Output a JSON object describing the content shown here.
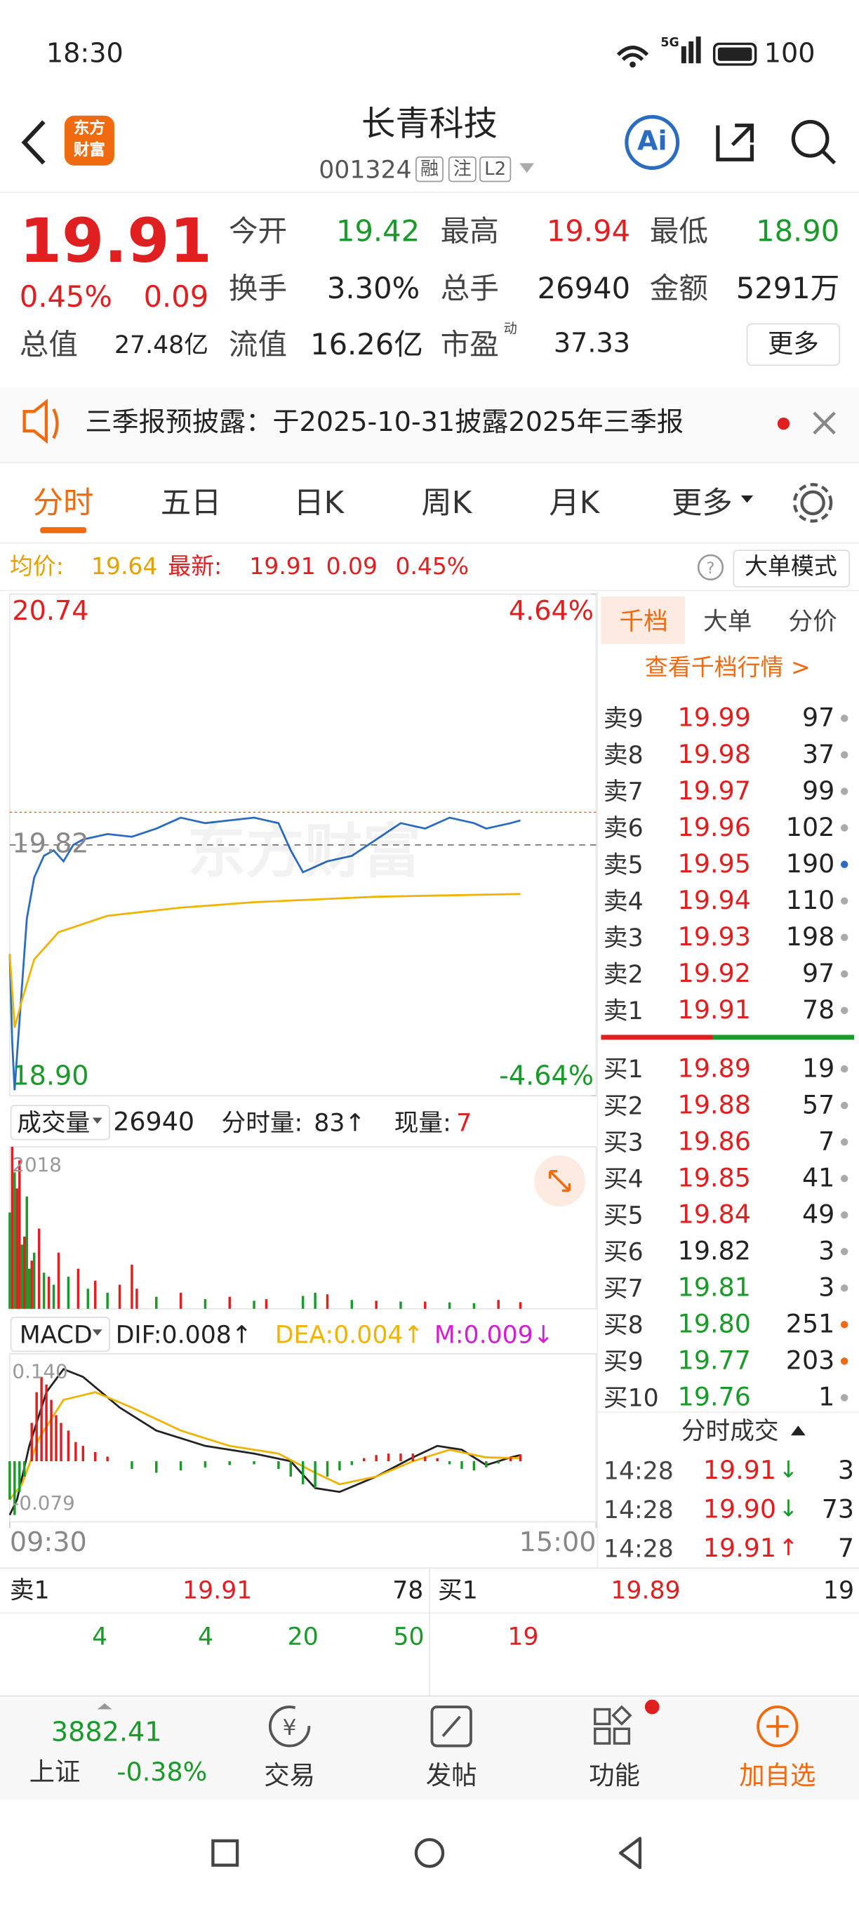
{
  "status_bar": {
    "time": "18:30",
    "network": "5G",
    "battery": "100"
  },
  "header": {
    "title": "长青科技",
    "code": "001324",
    "tags": [
      "融",
      "注",
      "L2"
    ],
    "logo": [
      "东方",
      "财富"
    ],
    "ai": "Ai"
  },
  "quote": {
    "price": "19.91",
    "change_pct": "0.45%",
    "change": "0.09",
    "stats": [
      {
        "label": "今开",
        "value": "19.42"
      },
      {
        "label": "最高",
        "value": "19.94"
      },
      {
        "label": "最低",
        "value": "18.90"
      },
      {
        "label": "换手",
        "value": "3.30%"
      },
      {
        "label": "总手",
        "value": "26940"
      },
      {
        "label": "金额",
        "value": "5291万"
      },
      {
        "label": "总值",
        "value": "27.48亿"
      },
      {
        "label": "流值",
        "value": "16.26亿"
      },
      {
        "label": "市盈",
        "sup": "动",
        "value": "37.33"
      }
    ],
    "more": "更多"
  },
  "notice": "三季报预披露：于2025-10-31披露2025年三季报",
  "tabs": [
    "分时",
    "五日",
    "日K",
    "周K",
    "月K",
    "更多"
  ],
  "info_bar": {
    "avg_label": "均价:",
    "avg": "19.64",
    "latest_label": "最新:",
    "latest": "19.91",
    "change": "0.09",
    "change_pct": "0.45%",
    "mode": "大单模式"
  },
  "chart_data": [
    {
      "type": "line",
      "watermark": "东方财富",
      "xlim": [
        0,
        240
      ],
      "xticks": [
        {
          "value": 0,
          "label": "09:30"
        },
        {
          "value": 240,
          "label": "15:00"
        }
      ],
      "ylim": [
        18.9,
        20.74
      ],
      "yticks": [
        20.74,
        19.82,
        {
          "value": 18.9,
          "label": "18.90"
        }
      ],
      "y2lim": [
        -4.64,
        4.64
      ],
      "y2ticks": [
        {
          "value": 4.64,
          "label": "4.64%"
        },
        {
          "value": -4.64,
          "label": "-4.64%"
        }
      ],
      "series": [
        {
          "color": "#2a6cc0",
          "x": [
            0,
            1,
            2,
            3,
            5,
            7,
            10,
            14,
            18,
            22,
            26,
            30,
            40,
            50,
            60,
            70,
            80,
            90,
            100,
            110,
            115,
            120,
            125,
            130,
            140,
            150,
            160,
            170,
            180,
            190,
            195,
            200,
            205,
            209
          ],
          "values": [
            19.42,
            19.1,
            18.92,
            19.05,
            19.3,
            19.55,
            19.7,
            19.78,
            19.8,
            19.76,
            19.82,
            19.84,
            19.86,
            19.85,
            19.88,
            19.92,
            19.9,
            19.91,
            19.92,
            19.9,
            19.8,
            19.72,
            19.74,
            19.76,
            19.78,
            19.84,
            19.9,
            19.88,
            19.92,
            19.9,
            19.88,
            19.89,
            19.9,
            19.91
          ]
        },
        {
          "color": "#f0b400",
          "x": [
            0,
            2,
            5,
            10,
            20,
            40,
            70,
            100,
            150,
            209
          ],
          "values": [
            19.42,
            19.15,
            19.25,
            19.4,
            19.5,
            19.56,
            19.59,
            19.61,
            19.63,
            19.64
          ]
        }
      ]
    },
    {
      "type": "bar",
      "label": "成交量",
      "total": "26940",
      "minute_label": "分时量:",
      "minute_value": "83↑",
      "current_label": "现量:",
      "current_value": "7",
      "xlim": [
        0,
        240
      ],
      "ylim": [
        0,
        2018
      ],
      "yticks": [
        2018
      ],
      "series": [
        {
          "color": "#e02020",
          "x": [
            1,
            3,
            4,
            6,
            9,
            12,
            16,
            20,
            28,
            35,
            45,
            50,
            52,
            70,
            90,
            105,
            130,
            150,
            170,
            200,
            209
          ],
          "values": [
            2018,
            1500,
            1850,
            900,
            600,
            1000,
            400,
            700,
            500,
            350,
            300,
            550,
            250,
            200,
            150,
            120,
            180,
            100,
            90,
            110,
            83
          ]
        },
        {
          "color": "#1a9a2a",
          "x": [
            0,
            2,
            5,
            7,
            8,
            10,
            14,
            18,
            24,
            32,
            40,
            60,
            80,
            100,
            120,
            125,
            140,
            160,
            180,
            190
          ],
          "values": [
            1200,
            1700,
            800,
            1400,
            500,
            700,
            450,
            300,
            400,
            250,
            200,
            150,
            120,
            100,
            160,
            200,
            110,
            90,
            80,
            70
          ]
        }
      ]
    },
    {
      "type": "combo",
      "label": "MACD",
      "indicators": [
        {
          "text": "DIF:0.008↑",
          "color": "#222222"
        },
        {
          "text": "DEA:0.004↑",
          "color": "#f0b400"
        },
        {
          "text": "M:0.009↓",
          "color": "#d020d0"
        }
      ],
      "xlim": [
        0,
        240
      ],
      "ylim": [
        -0.079,
        0.14
      ],
      "yticks": [
        {
          "value": 0.14,
          "label": "0.140"
        },
        -0.079
      ],
      "series": [
        {
          "type": "line",
          "color": "#222222",
          "x": [
            0,
            3,
            8,
            15,
            22,
            30,
            45,
            60,
            80,
            100,
            115,
            125,
            135,
            150,
            165,
            175,
            185,
            195,
            205,
            209
          ],
          "values": [
            -0.07,
            -0.05,
            0.02,
            0.09,
            0.12,
            0.11,
            0.07,
            0.04,
            0.02,
            0.01,
            0,
            -0.035,
            -0.04,
            -0.02,
            0.005,
            0.02,
            0.015,
            -0.005,
            0.005,
            0.008
          ]
        },
        {
          "type": "line",
          "color": "#f0b400",
          "x": [
            0,
            5,
            12,
            22,
            35,
            50,
            70,
            90,
            110,
            125,
            135,
            150,
            165,
            180,
            195,
            209
          ],
          "values": [
            -0.05,
            -0.03,
            0.03,
            0.08,
            0.09,
            0.07,
            0.04,
            0.02,
            0.01,
            -0.015,
            -0.03,
            -0.02,
            0,
            0.015,
            0.005,
            0.004
          ]
        },
        {
          "type": "bar",
          "color": "#e02020",
          "x": [
            9,
            11,
            13,
            15,
            17,
            19,
            21,
            24,
            27,
            30,
            35,
            40,
            145,
            150,
            155,
            160,
            165,
            170,
            175,
            205,
            209
          ],
          "values": [
            0.05,
            0.09,
            0.11,
            0.1,
            0.08,
            0.06,
            0.05,
            0.04,
            0.025,
            0.02,
            0.012,
            0.006,
            0.004,
            0.008,
            0.01,
            0.01,
            0.01,
            0.006,
            0.004,
            0.005,
            0.009
          ]
        },
        {
          "type": "bar",
          "color": "#1a9a2a",
          "x": [
            0,
            2,
            4,
            6,
            50,
            60,
            70,
            80,
            90,
            100,
            110,
            115,
            120,
            125,
            130,
            135,
            140,
            180,
            185,
            190,
            195,
            200
          ],
          "values": [
            -0.05,
            -0.07,
            -0.04,
            -0.02,
            -0.01,
            -0.015,
            -0.012,
            -0.008,
            -0.005,
            -0.004,
            -0.01,
            -0.02,
            -0.03,
            -0.035,
            -0.02,
            -0.012,
            -0.005,
            -0.004,
            -0.01,
            -0.012,
            -0.008,
            -0.003
          ]
        }
      ]
    }
  ],
  "order_book": {
    "tabs": [
      "千档",
      "大单",
      "分价"
    ],
    "link": "查看千档行情 >",
    "asks": [
      {
        "label": "卖9",
        "price": "19.99",
        "vol": "97",
        "dot": "#aaaaaa"
      },
      {
        "label": "卖8",
        "price": "19.98",
        "vol": "37",
        "dot": "#aaaaaa"
      },
      {
        "label": "卖7",
        "price": "19.97",
        "vol": "99",
        "dot": "#aaaaaa"
      },
      {
        "label": "卖6",
        "price": "19.96",
        "vol": "102",
        "dot": "#aaaaaa"
      },
      {
        "label": "卖5",
        "price": "19.95",
        "vol": "190",
        "dot": "#2a6cc0"
      },
      {
        "label": "卖4",
        "price": "19.94",
        "vol": "110",
        "dot": "#aaaaaa"
      },
      {
        "label": "卖3",
        "price": "19.93",
        "vol": "198",
        "dot": "#aaaaaa"
      },
      {
        "label": "卖2",
        "price": "19.92",
        "vol": "97",
        "dot": "#aaaaaa"
      },
      {
        "label": "卖1",
        "price": "19.91",
        "vol": "78",
        "dot": "#aaaaaa"
      }
    ],
    "bids": [
      {
        "label": "买1",
        "price": "19.89",
        "vol": "19",
        "dot": "#aaaaaa"
      },
      {
        "label": "买2",
        "price": "19.88",
        "vol": "57",
        "dot": "#aaaaaa"
      },
      {
        "label": "买3",
        "price": "19.86",
        "vol": "7",
        "dot": "#aaaaaa"
      },
      {
        "label": "买4",
        "price": "19.85",
        "vol": "41",
        "dot": "#aaaaaa"
      },
      {
        "label": "买5",
        "price": "19.84",
        "vol": "49",
        "dot": "#aaaaaa"
      },
      {
        "label": "买6",
        "price": "19.82",
        "vol": "3",
        "dot": "#aaaaaa"
      },
      {
        "label": "买7",
        "price": "19.81",
        "vol": "3",
        "dot": "#aaaaaa"
      },
      {
        "label": "买8",
        "price": "19.80",
        "vol": "251",
        "dot": "#f06a10"
      },
      {
        "label": "买9",
        "price": "19.77",
        "vol": "203",
        "dot": "#f06a10"
      },
      {
        "label": "买10",
        "price": "19.76",
        "vol": "1",
        "dot": "#aaaaaa"
      }
    ]
  },
  "trades": {
    "title": "分时成交",
    "rows": [
      {
        "time": "14:28",
        "price": "19.91",
        "dir": "↓",
        "vol": "3"
      },
      {
        "time": "14:28",
        "price": "19.90",
        "dir": "↓",
        "vol": "73"
      },
      {
        "time": "14:28",
        "price": "19.91",
        "dir": "↑",
        "vol": "7"
      }
    ]
  },
  "level1": {
    "sell_label": "卖1",
    "sell_price": "19.91",
    "sell_vol": "78",
    "buy_label": "买1",
    "buy_price": "19.89",
    "buy_vol": "19",
    "sell_queue": [
      "4",
      "4",
      "20",
      "50"
    ],
    "buy_queue": [
      "19"
    ]
  },
  "bottom_nav": {
    "index_value": "3882.41",
    "index_name": "上证",
    "index_change": "-0.38%",
    "items": [
      "交易",
      "发帖",
      "功能",
      "加自选"
    ]
  }
}
